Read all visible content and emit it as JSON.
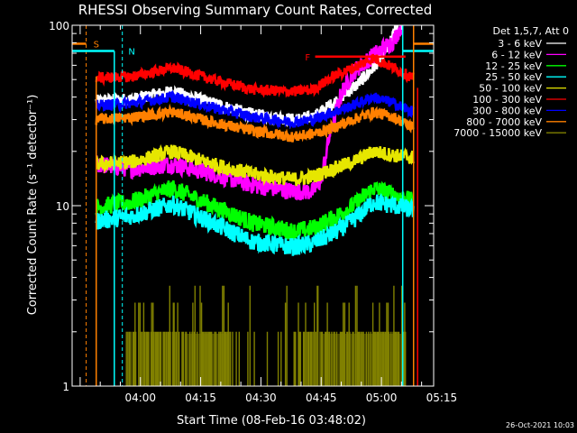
{
  "chart_data": {
    "type": "line",
    "title": "RHESSI Observing Summary Count Rates, Corrected",
    "xlabel": "Start Time (08-Feb-16 03:48:02)",
    "ylabel": "Corrected Count Rate (s⁻¹ detector⁻¹)",
    "y_scale": "log",
    "ylim": [
      1,
      100
    ],
    "xlim_minutes": [
      -5,
      85
    ],
    "x_ticks": [
      {
        "minute": 12,
        "label": "04:00"
      },
      {
        "minute": 27,
        "label": "04:15"
      },
      {
        "minute": 42,
        "label": "04:30"
      },
      {
        "minute": 57,
        "label": "04:45"
      },
      {
        "minute": 72,
        "label": "05:00"
      },
      {
        "minute": 87,
        "label": "05:15"
      }
    ],
    "y_ticks": [
      {
        "value": 1,
        "label": "1"
      },
      {
        "value": 10,
        "label": "10"
      },
      {
        "value": 100,
        "label": "100"
      }
    ],
    "legend_title": "Det 1,5,7, Att 0",
    "legend_position": "right",
    "series": [
      {
        "name": "3 - 6 keV",
        "color": "#ffffff",
        "noise": 0.035,
        "points": [
          [
            1,
            38
          ],
          [
            10,
            39
          ],
          [
            20,
            43
          ],
          [
            30,
            37
          ],
          [
            40,
            32
          ],
          [
            50,
            30
          ],
          [
            55,
            31
          ],
          [
            60,
            37
          ],
          [
            66,
            47
          ],
          [
            70,
            58
          ],
          [
            74,
            78
          ],
          [
            76,
            100
          ]
        ]
      },
      {
        "name": "6 - 12 keV",
        "color": "#ff00ff",
        "noise": 0.05,
        "points": [
          [
            1,
            17
          ],
          [
            10,
            16
          ],
          [
            20,
            17
          ],
          [
            30,
            15
          ],
          [
            40,
            13
          ],
          [
            50,
            12
          ],
          [
            55,
            12
          ],
          [
            57,
            14
          ],
          [
            59,
            24
          ],
          [
            62,
            42
          ],
          [
            65,
            55
          ],
          [
            70,
            68
          ],
          [
            75,
            82
          ],
          [
            77,
            100
          ]
        ]
      },
      {
        "name": "12 - 25 keV",
        "color": "#00ff00",
        "noise": 0.05,
        "points": [
          [
            1,
            9.8
          ],
          [
            10,
            10.5
          ],
          [
            20,
            12.5
          ],
          [
            30,
            10
          ],
          [
            40,
            8
          ],
          [
            50,
            7.2
          ],
          [
            55,
            7.5
          ],
          [
            60,
            8.5
          ],
          [
            65,
            10
          ],
          [
            70,
            12.5
          ],
          [
            75,
            11.5
          ],
          [
            80,
            10.5
          ]
        ]
      },
      {
        "name": "25 - 50 keV",
        "color": "#00ffff",
        "noise": 0.05,
        "points": [
          [
            1,
            8.2
          ],
          [
            10,
            8.8
          ],
          [
            20,
            10.2
          ],
          [
            30,
            8
          ],
          [
            40,
            6.3
          ],
          [
            50,
            5.9
          ],
          [
            55,
            6.2
          ],
          [
            60,
            7
          ],
          [
            65,
            8.3
          ],
          [
            70,
            10.5
          ],
          [
            75,
            10
          ],
          [
            80,
            9.5
          ]
        ]
      },
      {
        "name": "50 - 100 keV",
        "color": "#e6e600",
        "noise": 0.04,
        "points": [
          [
            1,
            17
          ],
          [
            10,
            17.5
          ],
          [
            20,
            20
          ],
          [
            30,
            17
          ],
          [
            40,
            15
          ],
          [
            50,
            14
          ],
          [
            55,
            14.5
          ],
          [
            60,
            16
          ],
          [
            65,
            17.5
          ],
          [
            70,
            20
          ],
          [
            75,
            19
          ],
          [
            80,
            18.5
          ]
        ]
      },
      {
        "name": "100 - 300 keV",
        "color": "#ff0000",
        "noise": 0.03,
        "points": [
          [
            1,
            51
          ],
          [
            10,
            52
          ],
          [
            20,
            58
          ],
          [
            30,
            50
          ],
          [
            40,
            44
          ],
          [
            50,
            43
          ],
          [
            55,
            44
          ],
          [
            60,
            52
          ],
          [
            65,
            58
          ],
          [
            70,
            66
          ],
          [
            75,
            58
          ],
          [
            80,
            51
          ]
        ]
      },
      {
        "name": "300 - 800 keV",
        "color": "#0000ff",
        "noise": 0.03,
        "points": [
          [
            1,
            36
          ],
          [
            10,
            37
          ],
          [
            20,
            40
          ],
          [
            30,
            35
          ],
          [
            40,
            31
          ],
          [
            50,
            29
          ],
          [
            55,
            30
          ],
          [
            60,
            33
          ],
          [
            65,
            36
          ],
          [
            70,
            40
          ],
          [
            75,
            37
          ],
          [
            80,
            33
          ]
        ]
      },
      {
        "name": "800 - 7000 keV",
        "color": "#ff8000",
        "noise": 0.03,
        "points": [
          [
            1,
            30
          ],
          [
            10,
            31
          ],
          [
            20,
            33
          ],
          [
            30,
            29
          ],
          [
            40,
            26
          ],
          [
            50,
            24
          ],
          [
            55,
            25
          ],
          [
            60,
            27
          ],
          [
            65,
            30
          ],
          [
            70,
            33
          ],
          [
            75,
            31
          ],
          [
            80,
            27
          ]
        ]
      },
      {
        "name": "7000 - 15000 keV",
        "color": "#808000",
        "style": "bars",
        "points": []
      }
    ],
    "markers": [
      {
        "label": "S",
        "color": "#ff8000"
      },
      {
        "label": "N",
        "color": "#00ffff"
      },
      {
        "label": "F",
        "color": "#ff0000"
      }
    ]
  },
  "timestamp": "26-Oct-2021 10:03"
}
